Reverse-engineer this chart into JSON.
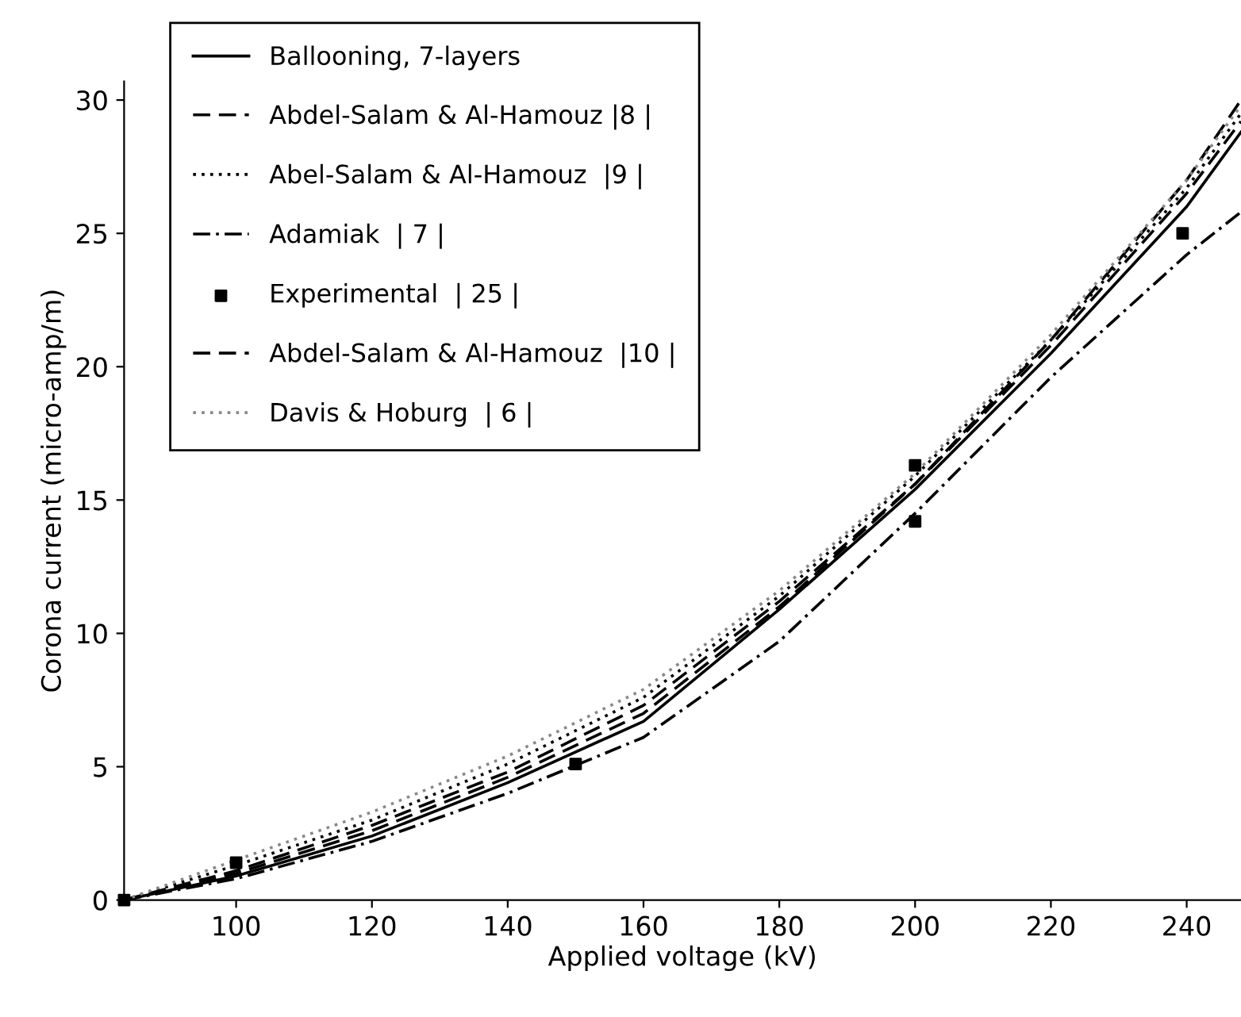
{
  "chart_data": {
    "type": "line",
    "xlabel": "Applied voltage (kV)",
    "ylabel": "Corona current (micro-amp/m)",
    "xlim": [
      83.5,
      248
    ],
    "xticks": [
      100,
      120,
      140,
      160,
      180,
      200,
      220,
      240
    ],
    "ylim": [
      0,
      30.7
    ],
    "yticks": [
      0,
      5,
      10,
      15,
      20,
      25,
      30
    ],
    "grid": false,
    "legend": "top left",
    "series": [
      {
        "name": "Ballooning, 7-layers",
        "color": "#000000",
        "line_style": "solid",
        "x": [
          83.5,
          100,
          120,
          140,
          160,
          180,
          200,
          220,
          240,
          248
        ],
        "values": [
          0,
          0.9,
          2.4,
          4.4,
          6.7,
          10.9,
          15.4,
          20.5,
          26.0,
          28.8
        ]
      },
      {
        "name": "Abdel-Salam & Al-Hamouz |8 |",
        "color": "#000000",
        "line_style": "dashed",
        "x": [
          83.5,
          100,
          120,
          140,
          160,
          180,
          200,
          220,
          240,
          248
        ],
        "values": [
          0,
          1.0,
          2.6,
          4.6,
          7.0,
          11.0,
          15.6,
          21.0,
          27.0,
          30.0
        ]
      },
      {
        "name": "Abel-Salam & Al-Hamouz  |9 |",
        "color": "#000000",
        "line_style": "dotted",
        "x": [
          83.5,
          100,
          120,
          140,
          160,
          180,
          200,
          220,
          240,
          248
        ],
        "values": [
          0,
          1.3,
          3.0,
          5.1,
          7.6,
          11.4,
          15.9,
          21.0,
          26.7,
          29.5
        ]
      },
      {
        "name": "Adamiak  | 7 |",
        "color": "#000000",
        "line_style": "dashdot",
        "x": [
          83.5,
          100,
          120,
          140,
          160,
          180,
          200,
          220,
          240,
          248
        ],
        "values": [
          0,
          0.8,
          2.2,
          4.0,
          6.1,
          9.7,
          14.5,
          19.6,
          24.2,
          25.8
        ]
      },
      {
        "name": "Experimental  | 25 |",
        "color": "#000000",
        "type": "scatter",
        "marker": "square",
        "x": [
          83.5,
          100,
          150,
          200,
          200,
          239.4
        ],
        "values": [
          0,
          1.4,
          5.1,
          16.3,
          14.2,
          25.0
        ]
      },
      {
        "name": "Abdel-Salam & Al-Hamouz  |10 |",
        "color": "#000000",
        "line_style": "dashed",
        "x": [
          83.5,
          100,
          120,
          140,
          160,
          180,
          200,
          220,
          240,
          248
        ],
        "values": [
          0,
          1.1,
          2.8,
          4.8,
          7.3,
          11.2,
          15.6,
          20.8,
          26.5,
          29.2
        ]
      },
      {
        "name": "Davis & Hoburg  | 6 |",
        "color": "#888888",
        "line_style": "dotted",
        "x": [
          83.5,
          100,
          120,
          140,
          160,
          180,
          200,
          220,
          240,
          248
        ],
        "values": [
          0,
          1.5,
          3.3,
          5.4,
          7.9,
          11.6,
          16.0,
          21.2,
          27.0,
          29.8
        ]
      }
    ]
  }
}
